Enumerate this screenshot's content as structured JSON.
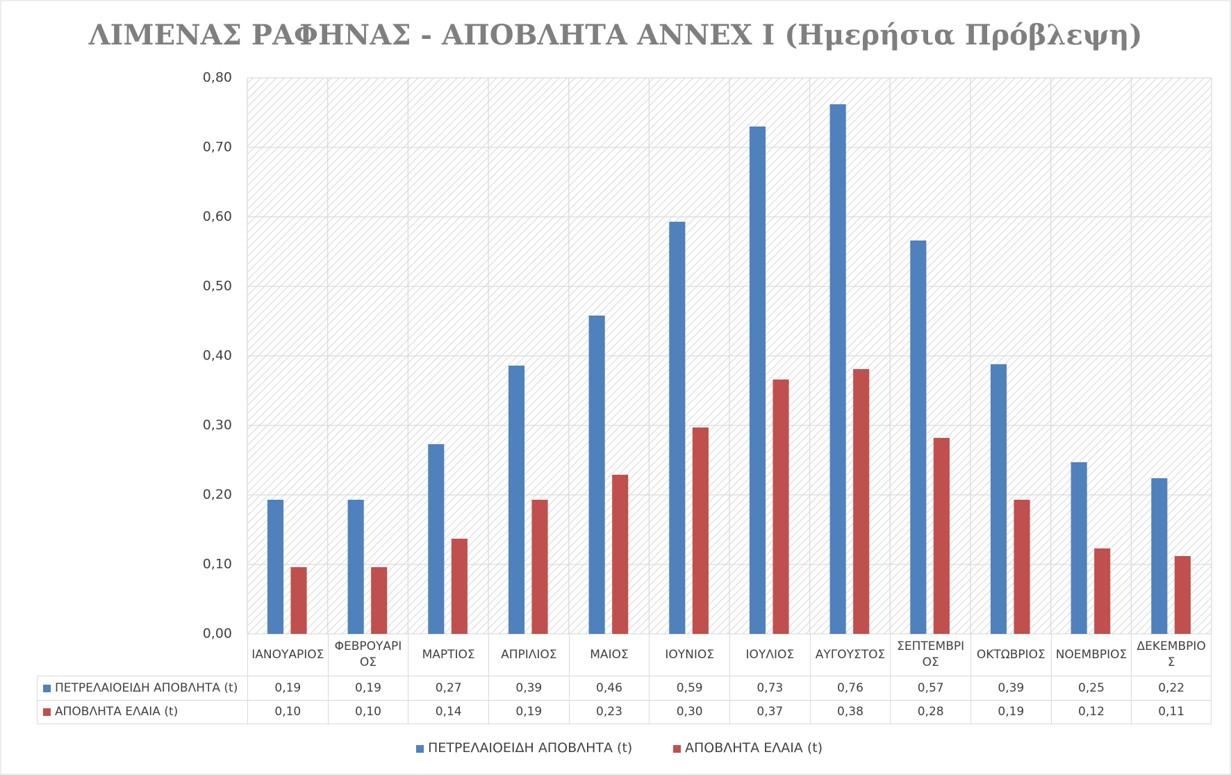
{
  "chart_data": {
    "type": "bar",
    "title": "ΛΙΜΕΝΑΣ ΡΑΦΗΝΑΣ - ΑΠΟΒΛΗΤΑ ANNEX I (Ημερήσια Πρόβλεψη)",
    "categories": [
      "ΙΑΝΟΥΑΡΙΟΣ",
      "ΦΕΒΡΟΥΑΡΙΟΣ",
      "ΜΑΡΤΙΟΣ",
      "ΑΠΡΙΛΙΟΣ",
      "ΜΑΙΟΣ",
      "ΙΟΥΝΙΟΣ",
      "ΙΟΥΛΙΟΣ",
      "ΑΥΓΟΥΣΤΟΣ",
      "ΣΕΠΤΕΜΒΡΙΟΣ",
      "ΟΚΤΩΒΡΙΟΣ",
      "ΝΟΕΜΒΡΙΟΣ",
      "ΔΕΚΕΜΒΡΙΟΣ"
    ],
    "series": [
      {
        "name": "ΠΕΤΡΕΛΑΙΟΕΙΔΗ ΑΠΟΒΛΗΤΑ (t)",
        "color": "#4f81bd",
        "values": [
          0.193,
          0.193,
          0.273,
          0.386,
          0.458,
          0.593,
          0.73,
          0.762,
          0.566,
          0.388,
          0.247,
          0.224
        ],
        "value_labels": [
          "0,19",
          "0,19",
          "0,27",
          "0,39",
          "0,46",
          "0,59",
          "0,73",
          "0,76",
          "0,57",
          "0,39",
          "0,25",
          "0,22"
        ]
      },
      {
        "name": "ΑΠΟΒΛΗΤΑ ΕΛΑΙΑ (t)",
        "color": "#c0504d",
        "values": [
          0.096,
          0.096,
          0.137,
          0.193,
          0.229,
          0.297,
          0.366,
          0.381,
          0.282,
          0.193,
          0.123,
          0.112
        ],
        "value_labels": [
          "0,10",
          "0,10",
          "0,14",
          "0,19",
          "0,23",
          "0,30",
          "0,37",
          "0,38",
          "0,28",
          "0,19",
          "0,12",
          "0,11"
        ]
      }
    ],
    "ylim": [
      0,
      0.8
    ],
    "yticks": [
      {
        "value": 0,
        "label": "0,00"
      },
      {
        "value": 0.1,
        "label": "0,10"
      },
      {
        "value": 0.2,
        "label": "0,20"
      },
      {
        "value": 0.3,
        "label": "0,30"
      },
      {
        "value": 0.4,
        "label": "0,40"
      },
      {
        "value": 0.5,
        "label": "0,50"
      },
      {
        "value": 0.6,
        "label": "0,60"
      },
      {
        "value": 0.7,
        "label": "0,70"
      },
      {
        "value": 0.8,
        "label": "0,80"
      }
    ],
    "grid": true
  }
}
